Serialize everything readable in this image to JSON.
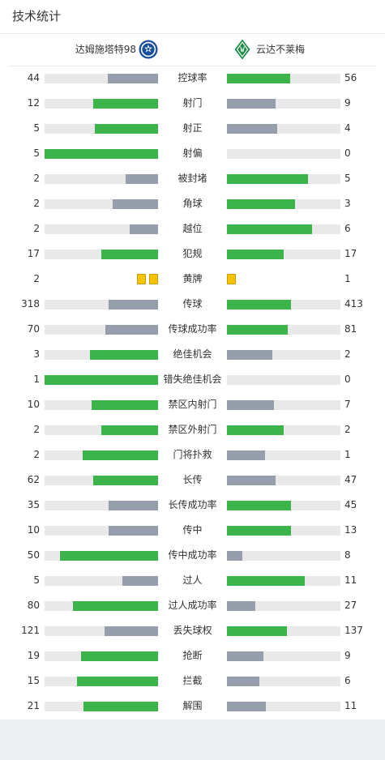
{
  "title": "技术统计",
  "teams": {
    "home": {
      "name": "达姆施塔特98",
      "badge": "darmstadt-badge-icon"
    },
    "away": {
      "name": "云达不莱梅",
      "badge": "werder-bremen-badge-icon"
    }
  },
  "colors": {
    "leader": "#3cb44b",
    "trailer": "#979eab",
    "track": "#e9e9e9",
    "card": "#f5c400"
  },
  "stats": [
    {
      "label": "控球率",
      "home": 44,
      "away": 56
    },
    {
      "label": "射门",
      "home": 12,
      "away": 9
    },
    {
      "label": "射正",
      "home": 5,
      "away": 4
    },
    {
      "label": "射偏",
      "home": 5,
      "away": 0
    },
    {
      "label": "被封堵",
      "home": 2,
      "away": 5
    },
    {
      "label": "角球",
      "home": 2,
      "away": 3
    },
    {
      "label": "越位",
      "home": 2,
      "away": 6
    },
    {
      "label": "犯规",
      "home": 17,
      "away": 17
    },
    {
      "label": "黄牌",
      "home": 2,
      "away": 1,
      "cards": true
    },
    {
      "label": "传球",
      "home": 318,
      "away": 413
    },
    {
      "label": "传球成功率",
      "home": 70,
      "away": 81
    },
    {
      "label": "绝佳机会",
      "home": 3,
      "away": 2
    },
    {
      "label": "错失绝佳机会",
      "home": 1,
      "away": 0
    },
    {
      "label": "禁区内射门",
      "home": 10,
      "away": 7
    },
    {
      "label": "禁区外射门",
      "home": 2,
      "away": 2
    },
    {
      "label": "门将扑救",
      "home": 2,
      "away": 1
    },
    {
      "label": "长传",
      "home": 62,
      "away": 47
    },
    {
      "label": "长传成功率",
      "home": 35,
      "away": 45
    },
    {
      "label": "传中",
      "home": 10,
      "away": 13
    },
    {
      "label": "传中成功率",
      "home": 50,
      "away": 8
    },
    {
      "label": "过人",
      "home": 5,
      "away": 11
    },
    {
      "label": "过人成功率",
      "home": 80,
      "away": 27
    },
    {
      "label": "丢失球权",
      "home": 121,
      "away": 137
    },
    {
      "label": "抢断",
      "home": 19,
      "away": 9
    },
    {
      "label": "拦截",
      "home": 15,
      "away": 6
    },
    {
      "label": "解围",
      "home": 21,
      "away": 11
    }
  ]
}
